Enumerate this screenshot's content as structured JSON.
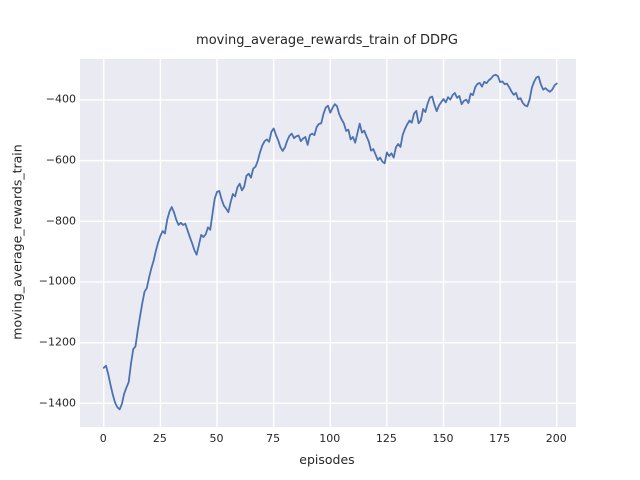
{
  "colors": {
    "figure_background": "#ffffff",
    "axes_background": "#eaeaf2",
    "grid": "#ffffff",
    "text": "#262626",
    "line": "#4c72b0"
  },
  "chart_data": {
    "type": "line",
    "title": "moving_average_rewards_train of DDPG",
    "xlabel": "episodes",
    "ylabel": "moving_average_rewards_train",
    "grid": true,
    "legend": "none",
    "xlim": [
      -10.5,
      208.5
    ],
    "ylim": [
      -1478,
      -265
    ],
    "x_ticks": [
      0,
      25,
      50,
      75,
      100,
      125,
      150,
      175,
      200
    ],
    "x_tick_labels": [
      "0",
      "25",
      "50",
      "75",
      "100",
      "125",
      "150",
      "175",
      "200"
    ],
    "y_ticks": [
      -400,
      -600,
      -800,
      -1000,
      -1200,
      -1400
    ],
    "y_tick_labels": [
      "−400",
      "−600",
      "−800",
      "−1000",
      "−1200",
      "−1400"
    ],
    "series": [
      {
        "name": "moving_average_rewards_train",
        "color": "#4c72b0",
        "x_start": 0,
        "x_step": 1,
        "values": [
          -1283,
          -1276,
          -1305,
          -1340,
          -1372,
          -1398,
          -1413,
          -1420,
          -1402,
          -1368,
          -1348,
          -1330,
          -1270,
          -1222,
          -1212,
          -1160,
          -1114,
          -1070,
          -1032,
          -1020,
          -985,
          -955,
          -930,
          -897,
          -870,
          -848,
          -832,
          -840,
          -795,
          -768,
          -753,
          -770,
          -795,
          -812,
          -805,
          -812,
          -808,
          -830,
          -852,
          -872,
          -895,
          -910,
          -878,
          -845,
          -852,
          -843,
          -820,
          -828,
          -775,
          -725,
          -703,
          -700,
          -727,
          -748,
          -758,
          -770,
          -737,
          -710,
          -718,
          -688,
          -676,
          -698,
          -686,
          -650,
          -643,
          -656,
          -626,
          -620,
          -600,
          -572,
          -550,
          -536,
          -530,
          -538,
          -505,
          -494,
          -515,
          -533,
          -556,
          -568,
          -556,
          -534,
          -518,
          -511,
          -526,
          -520,
          -517,
          -536,
          -527,
          -522,
          -548,
          -516,
          -511,
          -516,
          -489,
          -479,
          -477,
          -446,
          -425,
          -419,
          -442,
          -426,
          -414,
          -421,
          -448,
          -464,
          -477,
          -502,
          -498,
          -530,
          -522,
          -541,
          -509,
          -478,
          -508,
          -501,
          -520,
          -537,
          -567,
          -562,
          -580,
          -598,
          -590,
          -603,
          -609,
          -573,
          -585,
          -576,
          -590,
          -556,
          -545,
          -555,
          -515,
          -495,
          -480,
          -468,
          -475,
          -445,
          -436,
          -477,
          -468,
          -430,
          -440,
          -412,
          -392,
          -389,
          -416,
          -437,
          -418,
          -407,
          -397,
          -408,
          -391,
          -399,
          -384,
          -377,
          -393,
          -387,
          -414,
          -403,
          -399,
          -410,
          -379,
          -384,
          -358,
          -347,
          -344,
          -356,
          -340,
          -345,
          -335,
          -329,
          -320,
          -317,
          -321,
          -341,
          -339,
          -348,
          -346,
          -358,
          -372,
          -383,
          -377,
          -398,
          -394,
          -410,
          -418,
          -421,
          -399,
          -360,
          -340,
          -326,
          -323,
          -349,
          -366,
          -361,
          -368,
          -373,
          -366,
          -352,
          -346
        ]
      }
    ]
  }
}
